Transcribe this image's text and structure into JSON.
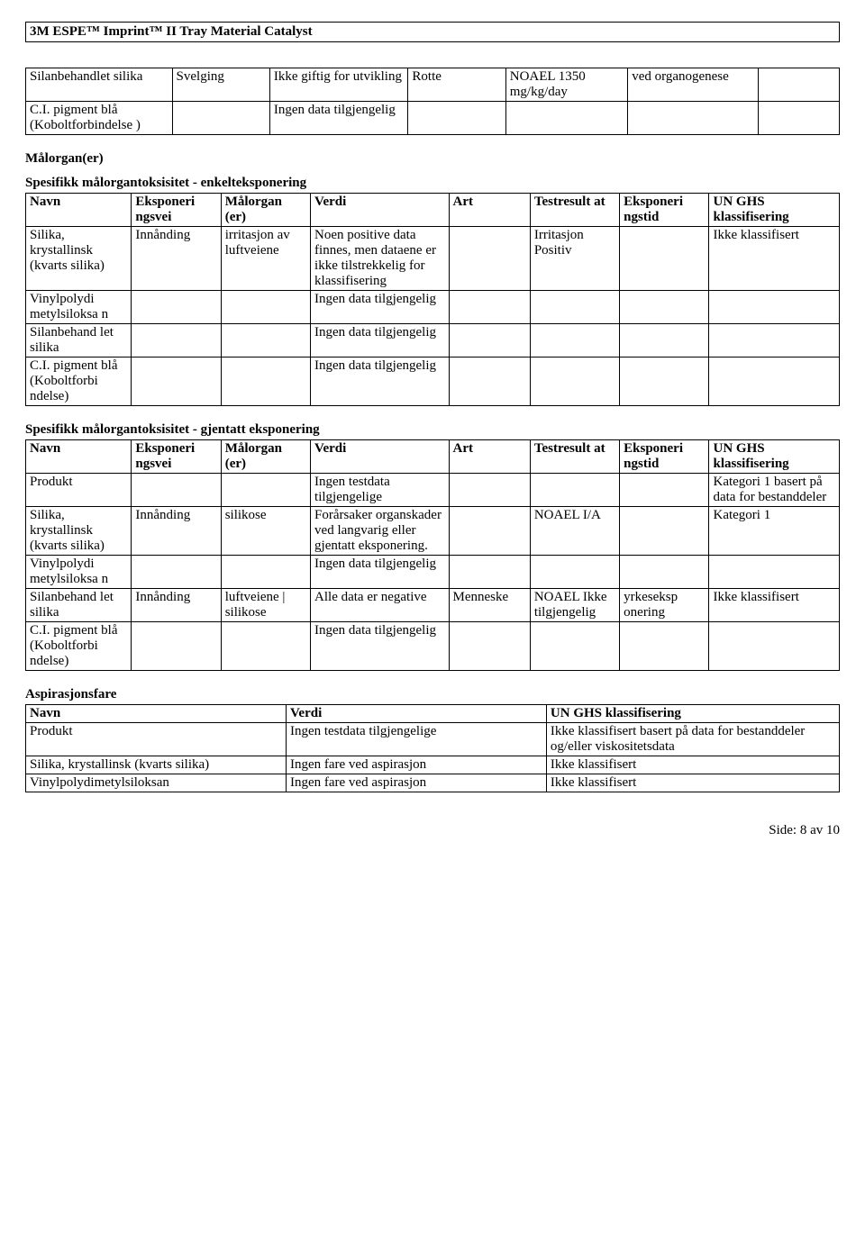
{
  "doc_title": "3M ESPE™ Imprint™ II Tray Material Catalyst",
  "table1": {
    "rows": [
      [
        "Silanbehandlet silika",
        "Svelging",
        "Ikke giftig for utvikling",
        "Rotte",
        "NOAEL 1350 mg/kg/day",
        "ved organogenese",
        ""
      ],
      [
        "C.I. pigment blå (Koboltforbindelse )",
        "",
        "Ingen data tilgjengelig",
        "",
        "",
        "",
        ""
      ]
    ]
  },
  "section_malorgan": "Målorgan(er)",
  "section_single": "Spesifikk målorgantoksisitet - enkelteksponering",
  "table2": {
    "headers": [
      "Navn",
      "Eksponeri ngsvei",
      "Målorgan (er)",
      "Verdi",
      "Art",
      "Testresult at",
      "Eksponeri ngstid",
      "UN GHS klassifisering"
    ],
    "rows": [
      [
        "Silika, krystallinsk (kvarts silika)",
        "Innånding",
        "irritasjon av luftveiene",
        "Noen positive data finnes, men dataene er ikke tilstrekkelig for klassifisering",
        "",
        "Irritasjon Positiv",
        "",
        "Ikke klassifisert"
      ],
      [
        "Vinylpolydi metylsiloksa n",
        "",
        "",
        "Ingen data tilgjengelig",
        "",
        "",
        "",
        ""
      ],
      [
        "Silanbehand let silika",
        "",
        "",
        "Ingen data tilgjengelig",
        "",
        "",
        "",
        ""
      ],
      [
        "C.I. pigment blå (Koboltforbi ndelse)",
        "",
        "",
        "Ingen data tilgjengelig",
        "",
        "",
        "",
        ""
      ]
    ]
  },
  "section_repeat": "Spesifikk målorgantoksisitet - gjentatt eksponering",
  "table3": {
    "headers": [
      "Navn",
      "Eksponeri ngsvei",
      "Målorgan (er)",
      "Verdi",
      "Art",
      "Testresult at",
      "Eksponeri ngstid",
      "UN GHS klassifisering"
    ],
    "rows": [
      [
        "Produkt",
        "",
        "",
        "Ingen testdata tilgjengelige",
        "",
        "",
        "",
        "Kategori 1 basert på data for bestanddeler"
      ],
      [
        "Silika, krystallinsk (kvarts silika)",
        "Innånding",
        "silikose",
        "Forårsaker organskader ved langvarig eller gjentatt eksponering.",
        "",
        "NOAEL I/A",
        "",
        "Kategori 1"
      ],
      [
        "Vinylpolydi metylsiloksa n",
        "",
        "",
        "Ingen data tilgjengelig",
        "",
        "",
        "",
        ""
      ],
      [
        "Silanbehand let silika",
        "Innånding",
        "luftveiene | silikose",
        "Alle data er negative",
        "Menneske",
        "NOAEL Ikke tilgjengelig",
        "yrkeseksp onering",
        "Ikke klassifisert"
      ],
      [
        "C.I. pigment blå (Koboltforbi ndelse)",
        "",
        "",
        "Ingen data tilgjengelig",
        "",
        "",
        "",
        ""
      ]
    ]
  },
  "section_asp": "Aspirasjonsfare",
  "table4": {
    "headers": [
      "Navn",
      "Verdi",
      "UN GHS klassifisering"
    ],
    "rows": [
      [
        "Produkt",
        "Ingen testdata tilgjengelige",
        "Ikke klassifisert basert på data for bestanddeler og/eller viskositetsdata"
      ],
      [
        "Silika, krystallinsk (kvarts silika)",
        "Ingen fare ved aspirasjon",
        "Ikke klassifisert"
      ],
      [
        "Vinylpolydimetylsiloksan",
        "Ingen fare ved aspirasjon",
        "Ikke klassifisert"
      ]
    ]
  },
  "footer": "Side: 8 av  10",
  "col_widths_8": [
    "13%",
    "11%",
    "11%",
    "17%",
    "10%",
    "11%",
    "11%",
    "16%"
  ],
  "col_widths_7": [
    "18%",
    "12%",
    "17%",
    "12%",
    "15%",
    "16%",
    "10%"
  ],
  "col_widths_3": [
    "32%",
    "32%",
    "36%"
  ]
}
